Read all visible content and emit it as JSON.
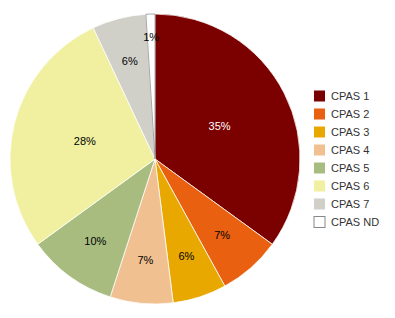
{
  "chart_data": {
    "type": "pie",
    "categories": [
      "CPAS 1",
      "CPAS 2",
      "CPAS 3",
      "CPAS 4",
      "CPAS 5",
      "CPAS 6",
      "CPAS 7",
      "CPAS ND"
    ],
    "values": [
      35,
      7,
      6,
      7,
      10,
      28,
      6,
      1
    ],
    "value_labels": [
      "35%",
      "7%",
      "6%",
      "7%",
      "10%",
      "28%",
      "6%",
      "1%"
    ],
    "colors": [
      "#7B0000",
      "#E86010",
      "#E8A800",
      "#F0C090",
      "#A8BC80",
      "#F0F0A0",
      "#D0D0C8",
      "#FFFFFF"
    ],
    "data_labels": true,
    "legend": "right"
  }
}
